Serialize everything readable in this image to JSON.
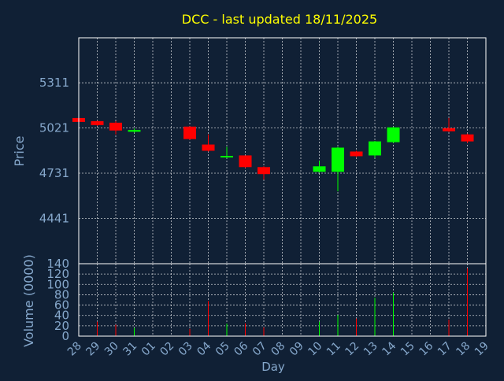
{
  "title": "DCC - last updated 18/11/2025",
  "colors": {
    "background": "#102035",
    "title": "#ffff00",
    "axis_text": "#86a8cc",
    "grid": "#ffffff",
    "up": "#00ff00",
    "down": "#ff0000"
  },
  "chart_data": [
    {
      "type": "candlestick",
      "ylabel": "Price",
      "yticks": [
        4441,
        4731,
        5021,
        5311
      ],
      "ylim": [
        4150,
        5600
      ],
      "grid": true,
      "categories": [
        "28",
        "29",
        "30",
        "31",
        "01",
        "02",
        "03",
        "04",
        "05",
        "06",
        "07",
        "08",
        "09",
        "10",
        "11",
        "12",
        "13",
        "14",
        "15",
        "16",
        "17",
        "18",
        "19"
      ],
      "candles": [
        {
          "x": "28",
          "open": 5085,
          "close": 5060,
          "high": 5090,
          "low": 5058
        },
        {
          "x": "29",
          "open": 5065,
          "close": 5040,
          "high": 5068,
          "low": 5035
        },
        {
          "x": "30",
          "open": 5055,
          "close": 5005,
          "high": 5065,
          "low": 4980
        },
        {
          "x": "31",
          "open": 4997,
          "close": 5008,
          "high": 5018,
          "low": 4992
        },
        {
          "x": "03",
          "open": 5030,
          "close": 4950,
          "high": 5032,
          "low": 4945
        },
        {
          "x": "04",
          "open": 4915,
          "close": 4875,
          "high": 4980,
          "low": 4870
        },
        {
          "x": "05",
          "open": 4836,
          "close": 4842,
          "high": 4900,
          "low": 4828
        },
        {
          "x": "06",
          "open": 4845,
          "close": 4770,
          "high": 4845,
          "low": 4765
        },
        {
          "x": "07",
          "open": 4770,
          "close": 4725,
          "high": 4775,
          "low": 4690
        },
        {
          "x": "10",
          "open": 4740,
          "close": 4775,
          "high": 4810,
          "low": 4735
        },
        {
          "x": "11",
          "open": 4740,
          "close": 4895,
          "high": 4900,
          "low": 4615
        },
        {
          "x": "12",
          "open": 4870,
          "close": 4840,
          "high": 4875,
          "low": 4835
        },
        {
          "x": "13",
          "open": 4845,
          "close": 4935,
          "high": 4938,
          "low": 4830
        },
        {
          "x": "14",
          "open": 4930,
          "close": 5025,
          "high": 5028,
          "low": 4925
        },
        {
          "x": "17",
          "open": 5020,
          "close": 5000,
          "high": 5085,
          "low": 4995
        },
        {
          "x": "18",
          "open": 4980,
          "close": 4935,
          "high": 4985,
          "low": 4925
        }
      ]
    },
    {
      "type": "bar",
      "ylabel": "Volume (0000)",
      "xlabel": "Day",
      "yticks": [
        0,
        20,
        40,
        60,
        80,
        100,
        120,
        140
      ],
      "ylim": [
        0,
        140
      ],
      "grid": true,
      "volumes": [
        {
          "x": "28",
          "value": 2,
          "dir": "down"
        },
        {
          "x": "29",
          "value": 28,
          "dir": "down"
        },
        {
          "x": "30",
          "value": 22,
          "dir": "down"
        },
        {
          "x": "31",
          "value": 16,
          "dir": "up"
        },
        {
          "x": "03",
          "value": 14,
          "dir": "down"
        },
        {
          "x": "04",
          "value": 68,
          "dir": "down"
        },
        {
          "x": "05",
          "value": 24,
          "dir": "up"
        },
        {
          "x": "06",
          "value": 25,
          "dir": "down"
        },
        {
          "x": "07",
          "value": 17,
          "dir": "down"
        },
        {
          "x": "10",
          "value": 28,
          "dir": "up"
        },
        {
          "x": "11",
          "value": 41,
          "dir": "up"
        },
        {
          "x": "12",
          "value": 34,
          "dir": "down"
        },
        {
          "x": "13",
          "value": 74,
          "dir": "up"
        },
        {
          "x": "14",
          "value": 84,
          "dir": "up"
        },
        {
          "x": "17",
          "value": 32,
          "dir": "down"
        },
        {
          "x": "18",
          "value": 131,
          "dir": "down"
        }
      ]
    }
  ]
}
